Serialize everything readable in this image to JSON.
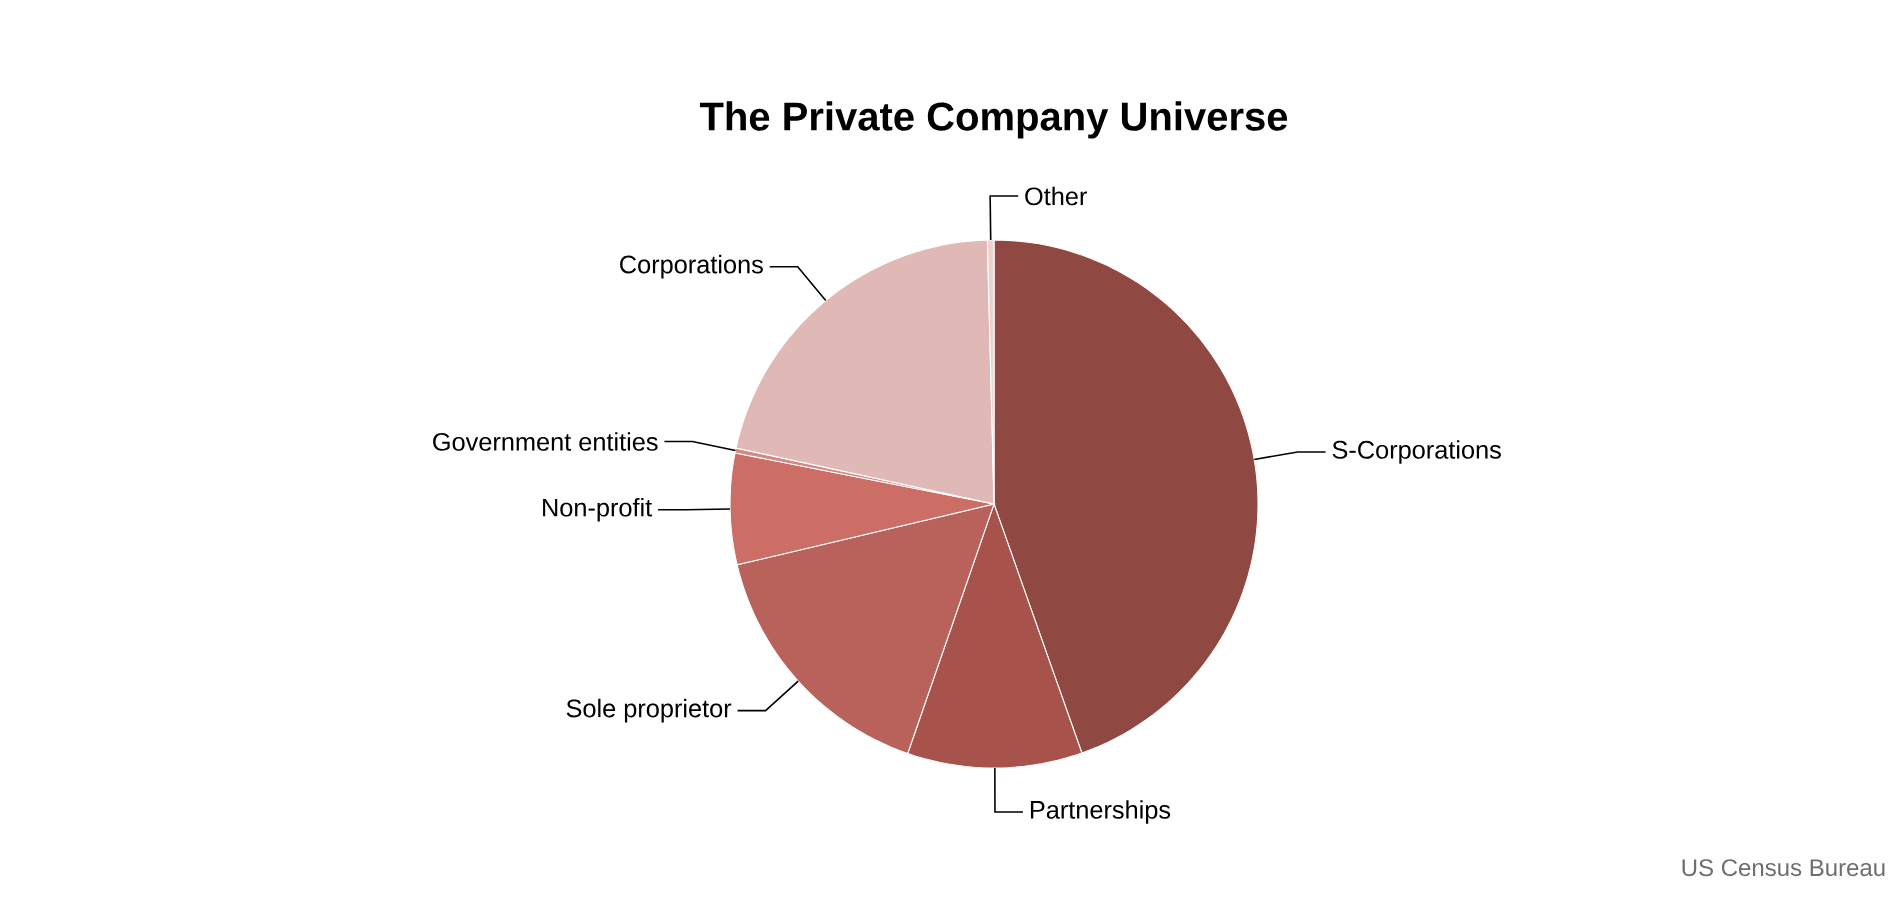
{
  "chart_data": {
    "type": "pie",
    "title": "The Private Company Universe",
    "categories": [
      "S-Corporations",
      "Partnerships",
      "Sole proprietor",
      "Non-profit",
      "Government entities",
      "Corporations",
      "Other"
    ],
    "values": [
      44.6,
      10.7,
      16.0,
      6.8,
      0.3,
      21.2,
      0.4
    ],
    "colors": [
      "#8f4842",
      "#a8524c",
      "#b9625c",
      "#cc6e66",
      "#d48a84",
      "#e0b8b5",
      "#ead2d0"
    ],
    "annotations": [
      "US Census Bureau"
    ]
  }
}
